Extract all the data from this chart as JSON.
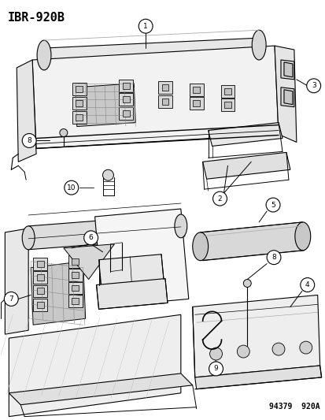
{
  "title": "IBR-920B",
  "footer": "94379  920A",
  "bg": "#ffffff",
  "lc": "#000000",
  "tc": "#000000",
  "title_fs": 11,
  "footer_fs": 7,
  "label_fs": 6.5,
  "figsize": [
    4.14,
    5.33
  ],
  "dpi": 100
}
